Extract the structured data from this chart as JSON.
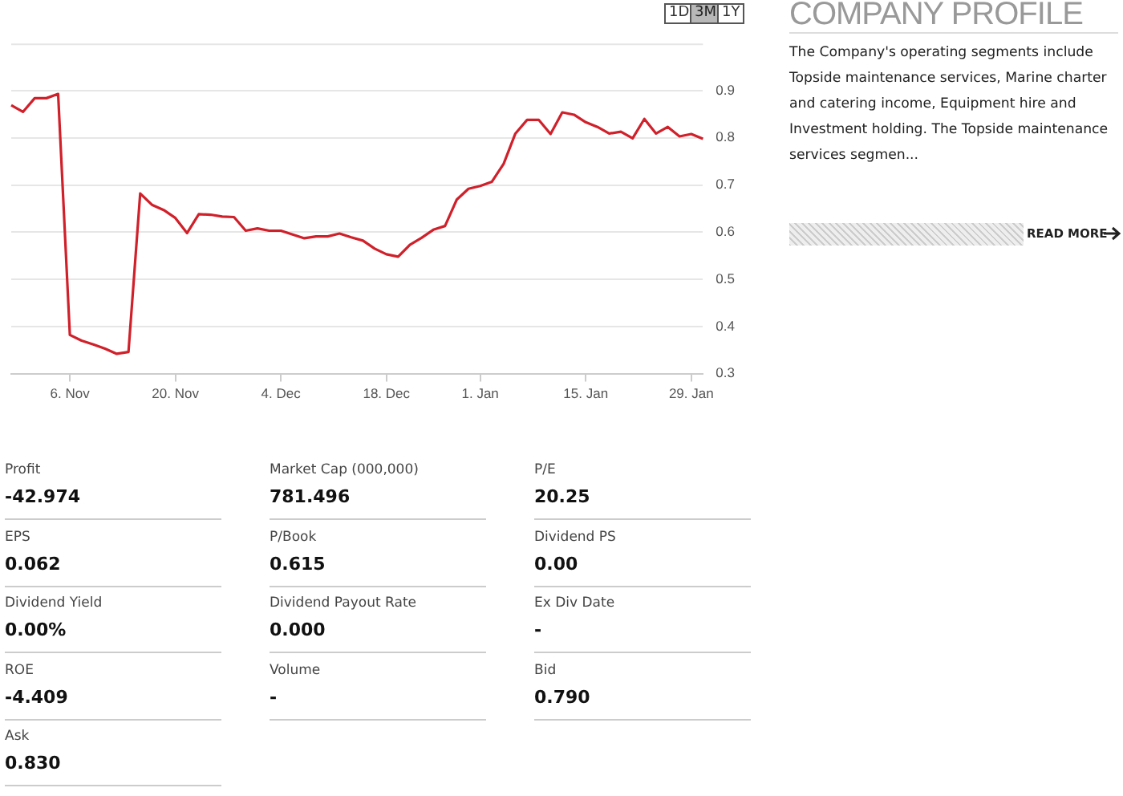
{
  "chart_data": {
    "type": "line",
    "categories": [
      null,
      null,
      null,
      null,
      null,
      "6. Nov",
      null,
      null,
      null,
      null,
      null,
      null,
      null,
      null,
      "20. Nov",
      null,
      null,
      null,
      null,
      null,
      null,
      null,
      null,
      "4. Dec",
      null,
      null,
      null,
      null,
      null,
      null,
      null,
      null,
      "18. Dec",
      null,
      null,
      null,
      null,
      null,
      null,
      null,
      "1. Jan",
      null,
      null,
      null,
      null,
      null,
      null,
      null,
      null,
      "15. Jan",
      null,
      null,
      null,
      null,
      null,
      null,
      null,
      null,
      "29. Jan",
      null
    ],
    "series": [
      {
        "color": "#d0202a",
        "values": [
          0.869,
          0.855,
          0.884,
          0.884,
          0.893,
          0.382,
          0.37,
          0.362,
          0.353,
          0.342,
          0.346,
          0.682,
          0.658,
          0.647,
          0.63,
          0.598,
          0.638,
          0.637,
          0.633,
          0.632,
          0.603,
          0.608,
          0.603,
          0.603,
          0.595,
          0.587,
          0.591,
          0.591,
          0.597,
          0.589,
          0.582,
          0.565,
          0.553,
          0.548,
          0.573,
          0.588,
          0.605,
          0.613,
          0.669,
          0.692,
          0.698,
          0.707,
          0.745,
          0.809,
          0.838,
          0.838,
          0.808,
          0.854,
          0.849,
          0.833,
          0.823,
          0.809,
          0.813,
          0.799,
          0.84,
          0.809,
          0.823,
          0.803,
          0.808,
          0.798
        ]
      }
    ],
    "ylim": [
      0.3,
      1.0
    ],
    "yticks": [
      0.3,
      0.4,
      0.5,
      0.6,
      0.7,
      0.8,
      0.9
    ],
    "grid": "y",
    "legend": false,
    "marker": "none",
    "line_style": "solid",
    "annotations": [
      "1D",
      "3M",
      "1Y",
      "COMPANY PROFILE",
      "The Company's operating segments include Topside maintenance services, Marine charter and catering income, Equipment hire and Investment holding. The Topside maintenance services segmen...",
      "READ MORE",
      "Profit",
      "-42.974",
      "Market Cap    (000,000)",
      "781.496",
      "P/E",
      "20.25",
      "EPS",
      "0.062",
      "P/Book",
      "0.615",
      "Dividend PS",
      "0.00",
      "Dividend Yield",
      "0.00%",
      "Dividend Payout Rate",
      "0.000",
      "Ex Div Date",
      "-",
      "ROE",
      "-4.409",
      "Volume",
      "-",
      "Bid",
      "0.790",
      "Ask",
      "0.830"
    ]
  }
}
